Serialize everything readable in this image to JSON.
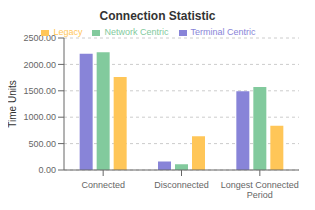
{
  "chart_data": {
    "type": "bar",
    "title": "Connection Statistic",
    "ylabel": "Time Units",
    "categories": [
      "Connected",
      "Disconnected",
      "Longest Connected\nPeriod"
    ],
    "series": [
      {
        "name": "Terminal Centric",
        "values": [
          2200,
          160,
          1490
        ]
      },
      {
        "name": "Network Centric",
        "values": [
          2230,
          110,
          1570
        ]
      },
      {
        "name": "Legacy",
        "values": [
          1760,
          640,
          840
        ]
      }
    ],
    "ylim": [
      0,
      2500
    ],
    "yticks": [
      {
        "value": 0,
        "label": "0.00"
      },
      {
        "value": 500,
        "label": "500.00"
      },
      {
        "value": 1000,
        "label": "1000.00"
      },
      {
        "value": 1500,
        "label": "1500.00"
      },
      {
        "value": 2000,
        "label": "2000.00"
      },
      {
        "value": 2500,
        "label": "2500.00"
      }
    ],
    "grid": true,
    "legend": "top"
  }
}
